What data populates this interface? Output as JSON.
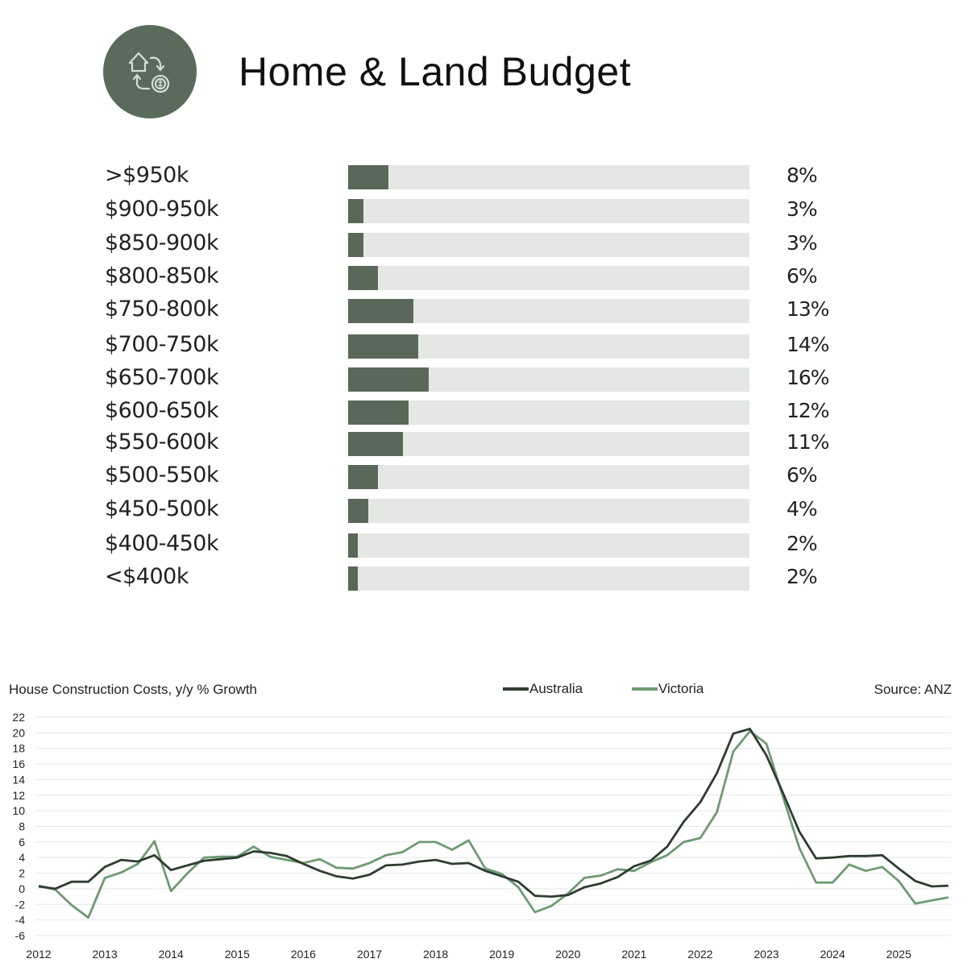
{
  "header": {
    "title": "Home & Land Budget",
    "icon": "house-money-exchange-icon",
    "accent_color": "#5a6b5b"
  },
  "budget": {
    "bar_color": "#596858",
    "track_color": "#e4e7e3",
    "rows": [
      {
        "label": ">$950k",
        "value": 8,
        "display": "8%"
      },
      {
        "label": "$900-950k",
        "value": 3,
        "display": "3%"
      },
      {
        "label": "$850-900k",
        "value": 3,
        "display": "3%"
      },
      {
        "label": "$800-850k",
        "value": 6,
        "display": "6%"
      },
      {
        "label": "$750-800k",
        "value": 13,
        "display": "13%"
      },
      {
        "label": "$700-750k",
        "value": 14,
        "display": "14%"
      },
      {
        "label": "$650-700k",
        "value": 16,
        "display": "16%"
      },
      {
        "label": "$600-650k",
        "value": 12,
        "display": "12%"
      },
      {
        "label": "$550-600k",
        "value": 11,
        "display": "11%"
      },
      {
        "label": "$500-550k",
        "value": 6,
        "display": "6%"
      },
      {
        "label": "$450-500k",
        "value": 4,
        "display": "4%"
      },
      {
        "label": "$400-450k",
        "value": 2,
        "display": "2%"
      },
      {
        "label": "<$400k",
        "value": 2,
        "display": "2%"
      }
    ],
    "max_scale": 80
  },
  "chart_data": {
    "type": "line",
    "title": "House Construction Costs, y/y % Growth",
    "source": "Source: ANZ",
    "xlabel": "",
    "ylabel": "",
    "ylim": [
      -6,
      22
    ],
    "yticks": [
      22,
      20,
      18,
      16,
      14,
      12,
      10,
      8,
      6,
      4,
      2,
      0,
      -2,
      -4,
      -6
    ],
    "xticks": [
      "2012",
      "2013",
      "2014",
      "2015",
      "2016",
      "2017",
      "2018",
      "2019",
      "2020",
      "2021",
      "2022",
      "2023",
      "2024",
      "2025"
    ],
    "x_start": 2012,
    "x_step": 0.25,
    "grid": true,
    "legend_position": "top-center",
    "series": [
      {
        "name": "Australia",
        "color": "#2f3d30",
        "values": [
          0.3,
          0.0,
          0.9,
          0.9,
          2.8,
          3.7,
          3.5,
          4.3,
          2.4,
          3.0,
          3.6,
          3.8,
          4.0,
          4.8,
          4.6,
          4.2,
          3.2,
          2.3,
          1.6,
          1.3,
          1.8,
          3.0,
          3.1,
          3.5,
          3.7,
          3.2,
          3.3,
          2.3,
          1.6,
          0.9,
          -0.9,
          -1.0,
          -0.8,
          0.2,
          0.7,
          1.5,
          2.9,
          3.6,
          5.4,
          8.6,
          11.1,
          14.8,
          19.9,
          20.5,
          17.1,
          12.3,
          7.3,
          3.9,
          4.0,
          4.2,
          4.2,
          4.3,
          2.6,
          1.0,
          0.3,
          0.4
        ]
      },
      {
        "name": "Victoria",
        "color": "#6f9a73",
        "values": [
          0.4,
          -0.1,
          -2.1,
          -3.7,
          1.4,
          2.1,
          3.2,
          6.1,
          -0.3,
          2.0,
          4.0,
          4.1,
          4.1,
          5.4,
          4.1,
          3.7,
          3.3,
          3.8,
          2.7,
          2.6,
          3.3,
          4.3,
          4.7,
          6.0,
          6.0,
          5.0,
          6.2,
          2.6,
          1.9,
          0.2,
          -3.0,
          -2.2,
          -0.6,
          1.4,
          1.7,
          2.5,
          2.3,
          3.4,
          4.3,
          6.0,
          6.5,
          9.8,
          17.6,
          20.2,
          18.6,
          11.8,
          5.2,
          0.8,
          0.8,
          3.1,
          2.3,
          2.8,
          1.0,
          -1.9,
          -1.5,
          -1.1
        ]
      }
    ]
  }
}
